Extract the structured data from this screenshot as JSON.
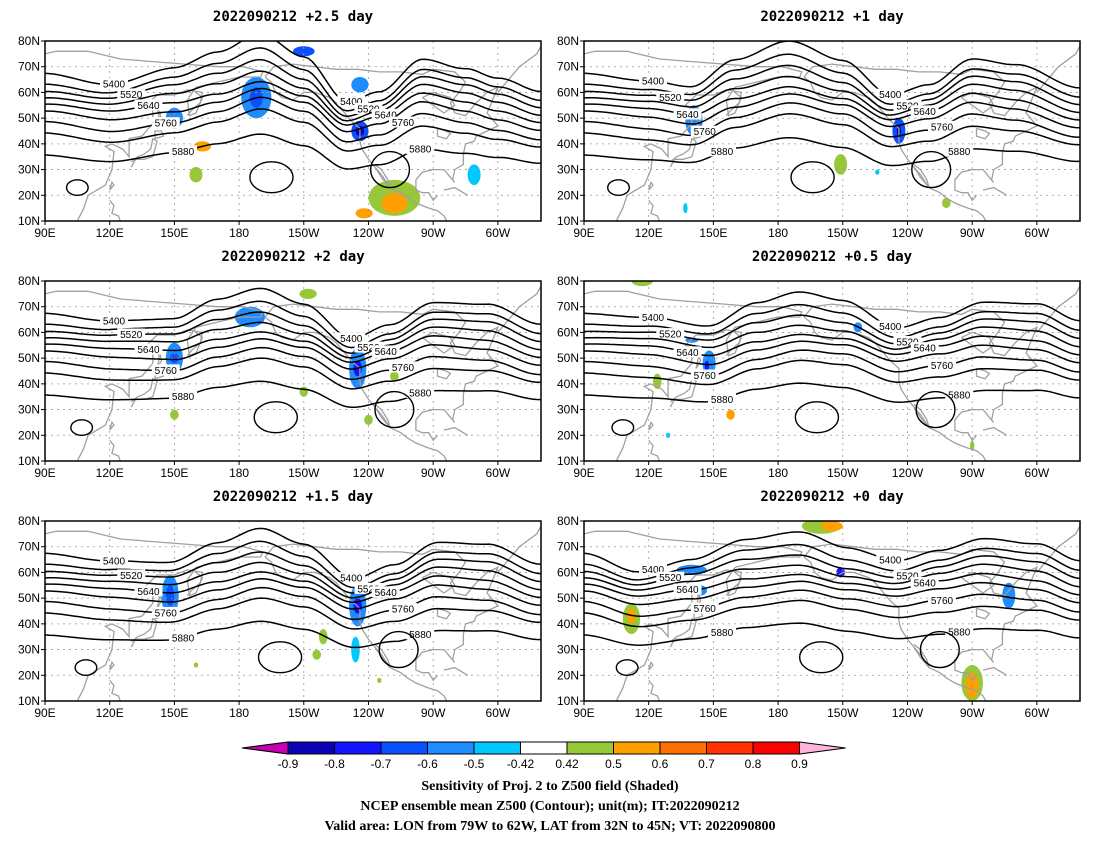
{
  "panels": [
    {
      "title": "2022090212  +2.5 day",
      "blobs": [
        {
          "lon": 150,
          "lat": 50,
          "rl": 4,
          "rb": 4,
          "level": -0.5
        },
        {
          "lon": 188,
          "lat": 58,
          "rl": 7,
          "rb": 8,
          "level": -0.5
        },
        {
          "lon": 188,
          "lat": 58,
          "rl": 3,
          "rb": 4,
          "level": -0.6
        },
        {
          "lon": 210,
          "lat": 76,
          "rl": 5,
          "rb": 2,
          "level": -0.6
        },
        {
          "lon": 236,
          "lat": 63,
          "rl": 4,
          "rb": 3,
          "level": -0.5
        },
        {
          "lon": 236,
          "lat": 45,
          "rl": 4,
          "rb": 4,
          "level": -0.6
        },
        {
          "lon": 236,
          "lat": 45,
          "rl": 2,
          "rb": 2,
          "level": -0.8
        },
        {
          "lon": 163,
          "lat": 39,
          "rl": 4,
          "rb": 2,
          "level": 0.6
        },
        {
          "lon": 160,
          "lat": 28,
          "rl": 3,
          "rb": 3,
          "level": 0.5
        },
        {
          "lon": 252,
          "lat": 19,
          "rl": 12,
          "rb": 7,
          "level": 0.5
        },
        {
          "lon": 252,
          "lat": 17,
          "rl": 6,
          "rb": 4,
          "level": 0.6
        },
        {
          "lon": 238,
          "lat": 13,
          "rl": 4,
          "rb": 2,
          "level": 0.6
        },
        {
          "lon": 289,
          "lat": 28,
          "rl": 3,
          "rb": 4,
          "level": -0.42
        }
      ]
    },
    {
      "title": "2022090212  +1 day",
      "blobs": [
        {
          "lon": 141,
          "lat": 49,
          "rl": 4,
          "rb": 6,
          "level": -0.5
        },
        {
          "lon": 236,
          "lat": 45,
          "rl": 3,
          "rb": 5,
          "level": -0.6
        },
        {
          "lon": 236,
          "lat": 45,
          "rl": 1,
          "rb": 2,
          "level": -0.8
        },
        {
          "lon": 209,
          "lat": 32,
          "rl": 3,
          "rb": 4,
          "level": 0.5
        },
        {
          "lon": 226,
          "lat": 29,
          "rl": 1,
          "rb": 1,
          "level": -0.42
        },
        {
          "lon": 137,
          "lat": 15,
          "rl": 1,
          "rb": 2,
          "level": -0.42
        },
        {
          "lon": 258,
          "lat": 17,
          "rl": 2,
          "rb": 2,
          "level": 0.5
        }
      ]
    },
    {
      "title": "2022090212  +2 day",
      "blobs": [
        {
          "lon": 150,
          "lat": 50,
          "rl": 4,
          "rb": 6,
          "level": -0.5
        },
        {
          "lon": 150,
          "lat": 50,
          "rl": 2,
          "rb": 2,
          "level": -0.6
        },
        {
          "lon": 185,
          "lat": 66,
          "rl": 7,
          "rb": 4,
          "level": -0.5
        },
        {
          "lon": 235,
          "lat": 46,
          "rl": 4,
          "rb": 8,
          "level": -0.5
        },
        {
          "lon": 235,
          "lat": 46,
          "rl": 2,
          "rb": 3,
          "level": -0.7
        },
        {
          "lon": 212,
          "lat": 75,
          "rl": 4,
          "rb": 2,
          "level": 0.5
        },
        {
          "lon": 252,
          "lat": 43,
          "rl": 2,
          "rb": 2,
          "level": 0.5
        },
        {
          "lon": 210,
          "lat": 37,
          "rl": 2,
          "rb": 2,
          "level": 0.5
        },
        {
          "lon": 150,
          "lat": 28,
          "rl": 2,
          "rb": 2,
          "level": 0.5
        },
        {
          "lon": 240,
          "lat": 26,
          "rl": 2,
          "rb": 2,
          "level": 0.5
        }
      ]
    },
    {
      "title": "2022090212  +0.5 day",
      "blobs": [
        {
          "lon": 117,
          "lat": 80,
          "rl": 5,
          "rb": 2,
          "level": 0.5
        },
        {
          "lon": 140,
          "lat": 57,
          "rl": 3,
          "rb": 1,
          "level": -0.5
        },
        {
          "lon": 148,
          "lat": 48,
          "rl": 3,
          "rb": 5,
          "level": -0.5
        },
        {
          "lon": 147,
          "lat": 47,
          "rl": 1,
          "rb": 2,
          "level": -0.7
        },
        {
          "lon": 217,
          "lat": 62,
          "rl": 2,
          "rb": 2,
          "level": -0.5
        },
        {
          "lon": 124,
          "lat": 41,
          "rl": 2,
          "rb": 3,
          "level": 0.5
        },
        {
          "lon": 158,
          "lat": 28,
          "rl": 2,
          "rb": 2,
          "level": 0.6
        },
        {
          "lon": 129,
          "lat": 20,
          "rl": 1,
          "rb": 1,
          "level": -0.42
        },
        {
          "lon": 270,
          "lat": 16,
          "rl": 1,
          "rb": 2,
          "level": 0.5
        }
      ]
    },
    {
      "title": "2022090212  +1.5 day",
      "blobs": [
        {
          "lon": 148,
          "lat": 51,
          "rl": 4,
          "rb": 8,
          "level": -0.5
        },
        {
          "lon": 148,
          "lat": 51,
          "rl": 2,
          "rb": 4,
          "level": -0.6
        },
        {
          "lon": 235,
          "lat": 47,
          "rl": 4,
          "rb": 8,
          "level": -0.5
        },
        {
          "lon": 235,
          "lat": 47,
          "rl": 2,
          "rb": 3,
          "level": -0.7
        },
        {
          "lon": 234,
          "lat": 30,
          "rl": 2,
          "rb": 5,
          "level": -0.42
        },
        {
          "lon": 219,
          "lat": 35,
          "rl": 2,
          "rb": 3,
          "level": 0.5
        },
        {
          "lon": 216,
          "lat": 28,
          "rl": 2,
          "rb": 2,
          "level": 0.5
        },
        {
          "lon": 160,
          "lat": 24,
          "rl": 1,
          "rb": 1,
          "level": 0.5
        },
        {
          "lon": 245,
          "lat": 18,
          "rl": 1,
          "rb": 1,
          "level": 0.5
        }
      ]
    },
    {
      "title": "2022090212  +0 day",
      "blobs": [
        {
          "lon": 200,
          "lat": 78,
          "rl": 9,
          "rb": 3,
          "level": 0.5
        },
        {
          "lon": 205,
          "lat": 78,
          "rl": 5,
          "rb": 2,
          "level": 0.6
        },
        {
          "lon": 140,
          "lat": 61,
          "rl": 7,
          "rb": 2,
          "level": -0.5
        },
        {
          "lon": 144,
          "lat": 53,
          "rl": 3,
          "rb": 2,
          "level": -0.5
        },
        {
          "lon": 112,
          "lat": 42,
          "rl": 4,
          "rb": 6,
          "level": 0.5
        },
        {
          "lon": 112,
          "lat": 43,
          "rl": 2,
          "rb": 3,
          "level": 0.6
        },
        {
          "lon": 209,
          "lat": 60,
          "rl": 2,
          "rb": 2,
          "level": -0.7
        },
        {
          "lon": 287,
          "lat": 51,
          "rl": 3,
          "rb": 5,
          "level": -0.5
        },
        {
          "lon": 270,
          "lat": 17,
          "rl": 5,
          "rb": 7,
          "level": 0.5
        },
        {
          "lon": 270,
          "lat": 16,
          "rl": 3,
          "rb": 5,
          "level": 0.6
        }
      ]
    }
  ],
  "axis": {
    "lat_labels": [
      "80N",
      "70N",
      "60N",
      "50N",
      "40N",
      "30N",
      "20N",
      "10N"
    ],
    "lat_values": [
      80,
      70,
      60,
      50,
      40,
      30,
      20,
      10
    ],
    "lon_labels": [
      "90E",
      "120E",
      "150E",
      "180",
      "150W",
      "120W",
      "90W",
      "60W"
    ],
    "lon_values": [
      90,
      120,
      150,
      180,
      210,
      240,
      270,
      300
    ],
    "lon_range": [
      90,
      320
    ],
    "lat_range": [
      10,
      80
    ],
    "grid": "dotted"
  },
  "contours": {
    "levels": [
      5400,
      5460,
      5520,
      5580,
      5640,
      5700,
      5760,
      5820,
      5880
    ],
    "labels": [
      "5400",
      "5520",
      "5640",
      "5760",
      "5880"
    ]
  },
  "colorbar": {
    "ticks": [
      "-0.9",
      "-0.8",
      "-0.7",
      "-0.6",
      "-0.5",
      "-0.42",
      "0.42",
      "0.5",
      "0.6",
      "0.7",
      "0.8",
      "0.9"
    ],
    "colors": [
      "#0a00b4",
      "#1414ff",
      "#0a50ff",
      "#1e8cff",
      "#00c8ff",
      "#ffffff",
      "#96c837",
      "#ffa000",
      "#ff6e00",
      "#ff3200",
      "#ff0000"
    ],
    "end_low": "#c800b4",
    "end_high": "#ffb4dc",
    "level_colors": {
      "-0.9": "#c800b4",
      "-0.8": "#0a00b4",
      "-0.7": "#1414ff",
      "-0.6": "#0a50ff",
      "-0.5": "#1e8cff",
      "-0.42": "#00c8ff",
      "0.5": "#96c837",
      "0.6": "#ffa000",
      "0.7": "#ff6e00",
      "0.8": "#ff3200",
      "0.9": "#ff0000"
    }
  },
  "caption": {
    "line1": "Sensitivity of Proj. 2 to Z500 field (Shaded)",
    "line2": "NCEP ensemble mean Z500 (Contour); unit(m); IT:2022090212",
    "line3": "Valid area: LON from 79W to 62W, LAT from 32N to 45N; VT: 2022090800"
  },
  "colors": {
    "contour": "#000000",
    "coast": "#a0a0a0",
    "grid": "#9a9a9a"
  }
}
